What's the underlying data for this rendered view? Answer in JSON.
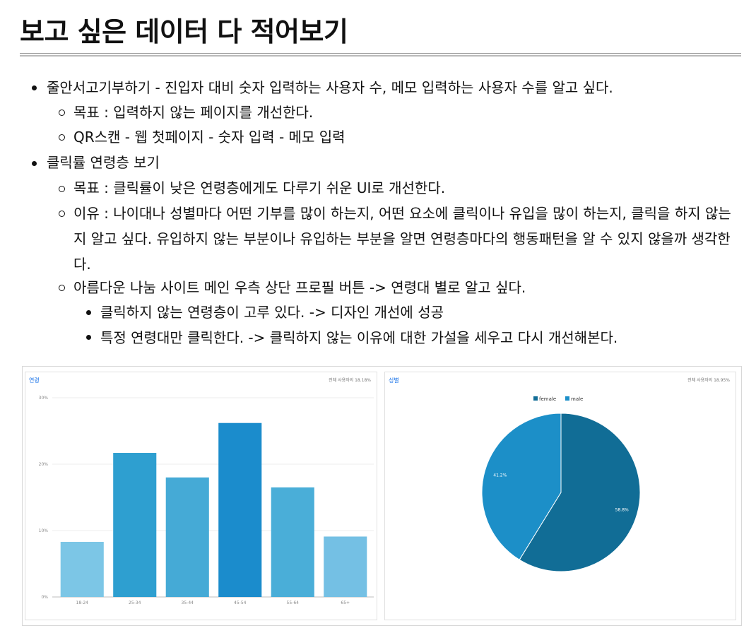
{
  "title": "보고 싶은 데이터 다 적어보기",
  "notes": {
    "item1": "줄안서고기부하기 - 진입자 대비 숫자 입력하는 사용자 수, 메모 입력하는 사용자 수를 알고 싶다.",
    "item1_sub1": "목표 : 입력하지 않는 페이지를 개선한다.",
    "item1_sub2": "QR스캔 - 웹 첫페이지 - 숫자 입력 - 메모 입력",
    "item2": "클릭률 연령층 보기",
    "item2_sub1": "목표 : 클릭률이 낮은 연령층에게도 다루기 쉬운 UI로 개선한다.",
    "item2_sub2": "이유 : 나이대나 성별마다 어떤 기부를 많이 하는지, 어떤 요소에 클릭이나 유입을 많이 하는지, 클릭을 하지 않는지 알고 싶다. 유입하지 않는 부분이나 유입하는 부분을 알면 연령층마다의 행동패턴을 알 수 있지 않을까 생각한다.",
    "item2_sub3": "아름다운 나눔 사이트 메인 우측 상단 프로필 버튼 -> 연령대 별로 알고 싶다.",
    "item2_sub3_a": "클릭하지 않는 연령층이 고루 있다. -> 디자인 개선에 성공",
    "item2_sub3_b": "특정 연령대만 클릭한다. -> 클릭하지 않는 이유에 대한 가설을 세우고 다시 개선해본다."
  },
  "chart_data": [
    {
      "type": "bar",
      "title": "연령",
      "note": "전체 사용자의 18.18%",
      "categories": [
        "18-24",
        "25-34",
        "35-44",
        "45-54",
        "55-64",
        "65+"
      ],
      "values": [
        8.3,
        21.7,
        18.0,
        26.2,
        16.5,
        9.1
      ],
      "yticks": [
        "0%",
        "10%",
        "20%",
        "30%"
      ],
      "ylim": [
        0,
        30
      ],
      "colors": [
        "#7cc6e6",
        "#2e9fd0",
        "#45aad6",
        "#1b8ccc",
        "#4aaed8",
        "#74c0e4"
      ]
    },
    {
      "type": "pie",
      "title": "성별",
      "note": "전체 사용자의 18.95%",
      "labels": [
        "female",
        "male"
      ],
      "values": [
        58.8,
        41.2
      ],
      "value_labels": [
        "58.8%",
        "41.2%"
      ],
      "colors": [
        "#116d96",
        "#1c8fc8"
      ]
    }
  ]
}
